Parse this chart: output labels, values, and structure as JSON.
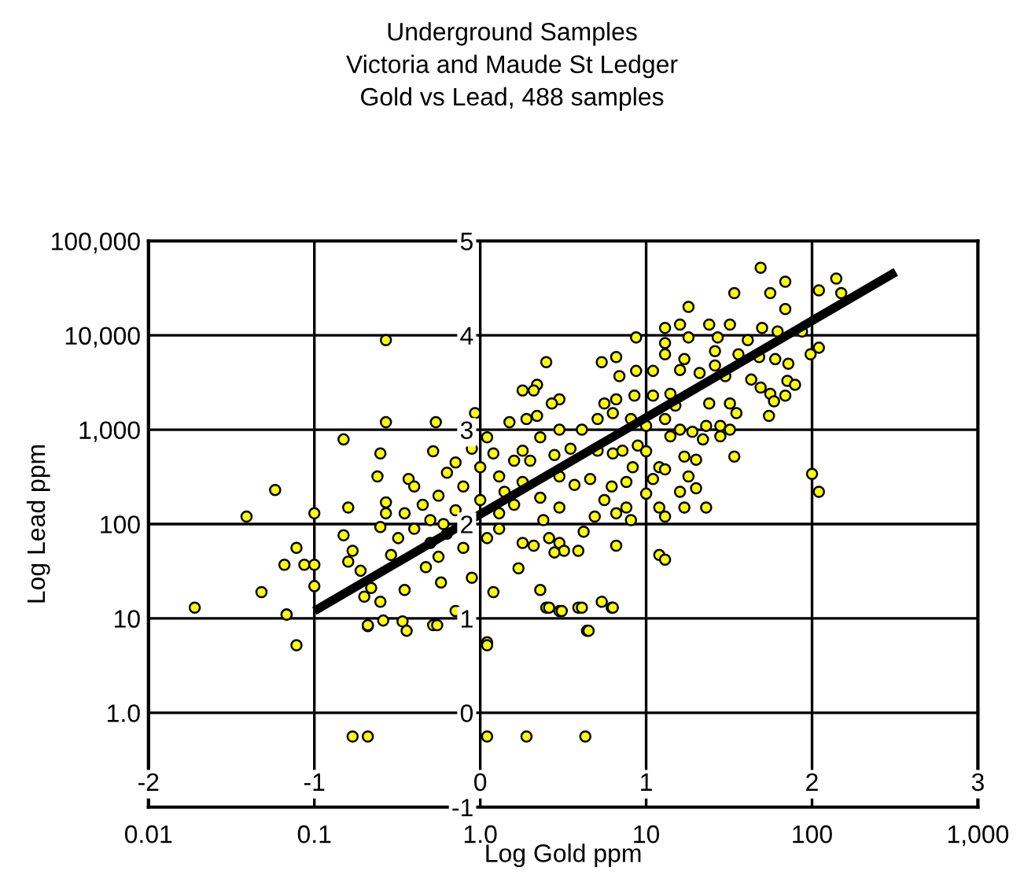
{
  "chart_data": {
    "type": "scatter",
    "title": "Underground Samples\nVictoria and Maude St Ledger\nGold vs Lead, 488 samples",
    "xlabel": "Log Gold ppm",
    "ylabel": "Log Lead ppm",
    "log": "xy",
    "xlim": [
      0.01,
      1000
    ],
    "ylim": [
      0.1,
      100000
    ],
    "xticks": [
      0.01,
      0.1,
      {
        "value": 1,
        "label": "1.0"
      },
      10,
      100,
      {
        "value": 1000,
        "label": "1,000"
      }
    ],
    "yticks": [
      {
        "value": 1,
        "label": "1.0"
      },
      10,
      100,
      {
        "value": 1000,
        "label": "1,000"
      },
      {
        "value": 10000,
        "label": "10,000"
      },
      {
        "value": 100000,
        "label": "100,000"
      }
    ],
    "x2lim": [
      -2,
      3
    ],
    "x2ticks": [
      -2,
      -1,
      0,
      1,
      2,
      3
    ],
    "y2lim": [
      -1,
      5
    ],
    "y2ticks": [
      -1,
      0,
      1,
      2,
      3,
      4,
      5
    ],
    "grid": true,
    "series": [
      {
        "color": "#ffff00",
        "marker": "circle",
        "x": [
          0.019,
          0.039,
          0.058,
          0.048,
          0.066,
          0.078,
          0.087,
          0.068,
          0.1,
          0.1,
          0.1,
          0.15,
          0.16,
          0.15,
          0.27,
          0.27,
          0.25,
          0.24,
          0.27,
          0.27,
          0.25,
          0.17,
          0.16,
          0.19,
          0.22,
          0.2,
          0.25,
          0.29,
          0.35,
          0.37,
          0.52,
          0.54,
          0.93,
          1.1,
          1.8,
          0.47,
          0.58,
          0.71,
          0.21,
          0.26,
          0.34,
          0.52,
          0.89,
          1.2,
          1.1,
          49,
          69,
          140,
          150,
          110,
          34,
          56,
          18,
          69,
          24,
          16,
          13,
          8.7,
          32,
          50,
          62,
          110,
          98,
          87,
          13,
          13,
          18,
          27,
          41,
          26,
          17,
          26,
          36,
          48,
          60,
          72,
          2.5,
          5.4,
          6.6,
          6.9,
          8.7,
          11,
          16,
          21,
          30,
          43,
          71,
          79,
          2.2,
          2.1,
          3.0,
          2.7,
          5.6,
          6.6,
          8.5,
          11,
          14,
          49,
          56,
          69,
          59,
          24,
          32,
          15,
          6.3,
          35,
          55,
          2.2,
          1.9,
          1.5,
          3.0,
          4.1,
          5.1,
          8.1,
          10,
          13,
          16,
          23,
          28,
          32,
          28,
          22,
          19,
          14,
          10,
          2.3,
          1.8,
          1.6,
          2.0,
          2.8,
          3.5,
          5.1,
          6.3,
          7.2,
          8.9,
          17,
          20,
          34,
          8.3,
          12,
          13,
          18,
          20,
          11,
          7.6,
          6.2,
          4.6,
          3.7,
          3.0,
          2.3,
          1.8,
          10,
          16,
          12,
          17,
          23,
          13,
          5.6,
          7.6,
          8.1,
          6.6,
          4.9,
          4.2,
          2.4,
          3.0,
          1.8,
          2.1,
          2.6,
          3.0,
          3.2,
          3.9,
          2.8,
          6.6,
          1.7,
          12,
          13,
          2.3,
          2.5,
          3.0,
          3.9,
          5.4,
          6.2,
          4.4,
          100,
          110,
          0.068,
          0.078,
          0.21,
          0.36,
          0.55,
          1.1,
          2.6,
          3.1,
          4.1,
          4.5,
          6.3,
          0.17,
          0.21,
          1.1,
          1.9,
          4.3,
          0.35,
          0.4,
          0.45,
          0.5,
          0.56,
          0.63,
          0.71,
          0.79,
          0.6,
          1.0,
          1.1,
          1.3,
          1.4,
          0.5,
          0.63,
          0.79,
          1.0,
          1.3,
          0.4,
          0.32,
          1.6,
          1.3,
          0.56,
          0.89,
          1.2,
          0.71
        ],
        "values": [
          13,
          120,
          230,
          19,
          37,
          56,
          37,
          11,
          130,
          37,
          22,
          790,
          150,
          76,
          8900,
          1200,
          560,
          320,
          170,
          130,
          93,
          52,
          40,
          32,
          21,
          17,
          15,
          47,
          20,
          300,
          590,
          1200,
          1500,
          830,
          2600,
          35,
          24,
          12,
          8.3,
          9.5,
          9.3,
          8.5,
          27,
          19,
          5.6,
          52000,
          37000,
          40000,
          28000,
          30000,
          28000,
          28000,
          20000,
          19000,
          13000,
          13000,
          12000,
          9500,
          13000,
          12000,
          11000,
          7400,
          6300,
          11000,
          8300,
          6300,
          9500,
          9500,
          8900,
          6800,
          5600,
          4800,
          6300,
          5900,
          5600,
          5000,
          5200,
          5200,
          5900,
          3700,
          4200,
          4200,
          4300,
          4000,
          3700,
          3400,
          3300,
          3000,
          3000,
          2600,
          2100,
          1900,
          1900,
          2100,
          2300,
          2300,
          2400,
          2800,
          2400,
          2300,
          2000,
          1900,
          1900,
          1800,
          1500,
          1500,
          1400,
          1400,
          1300,
          1200,
          1000,
          1000,
          1300,
          1300,
          1100,
          1300,
          1000,
          1100,
          1100,
          1000,
          850,
          790,
          950,
          850,
          590,
          830,
          600,
          470,
          470,
          540,
          630,
          600,
          560,
          600,
          680,
          520,
          480,
          520,
          400,
          400,
          380,
          320,
          240,
          300,
          280,
          250,
          300,
          260,
          320,
          190,
          280,
          210,
          220,
          150,
          150,
          150,
          120,
          180,
          150,
          110,
          130,
          120,
          83,
          110,
          150,
          63,
          59,
          71,
          63,
          52,
          52,
          50,
          59,
          34,
          47,
          42,
          20,
          13,
          12,
          13,
          15,
          13,
          7.4,
          340,
          220,
          11,
          5.2,
          8.5,
          7.4,
          8.5,
          5.2,
          13,
          12,
          13,
          7.4,
          13,
          0.56,
          0.56,
          0.56,
          0.56,
          0.56,
          130,
          89,
          160,
          110,
          200,
          79,
          140,
          250,
          100,
          180,
          71,
          130,
          220,
          63,
          350,
          56,
          400,
          89,
          250,
          71,
          160,
          320,
          45,
          630,
          560,
          450
        ]
      },
      {
        "type": "line",
        "color": "#000000",
        "x": [
          0.1,
          320
        ],
        "values": [
          12,
          47000
        ]
      }
    ]
  }
}
